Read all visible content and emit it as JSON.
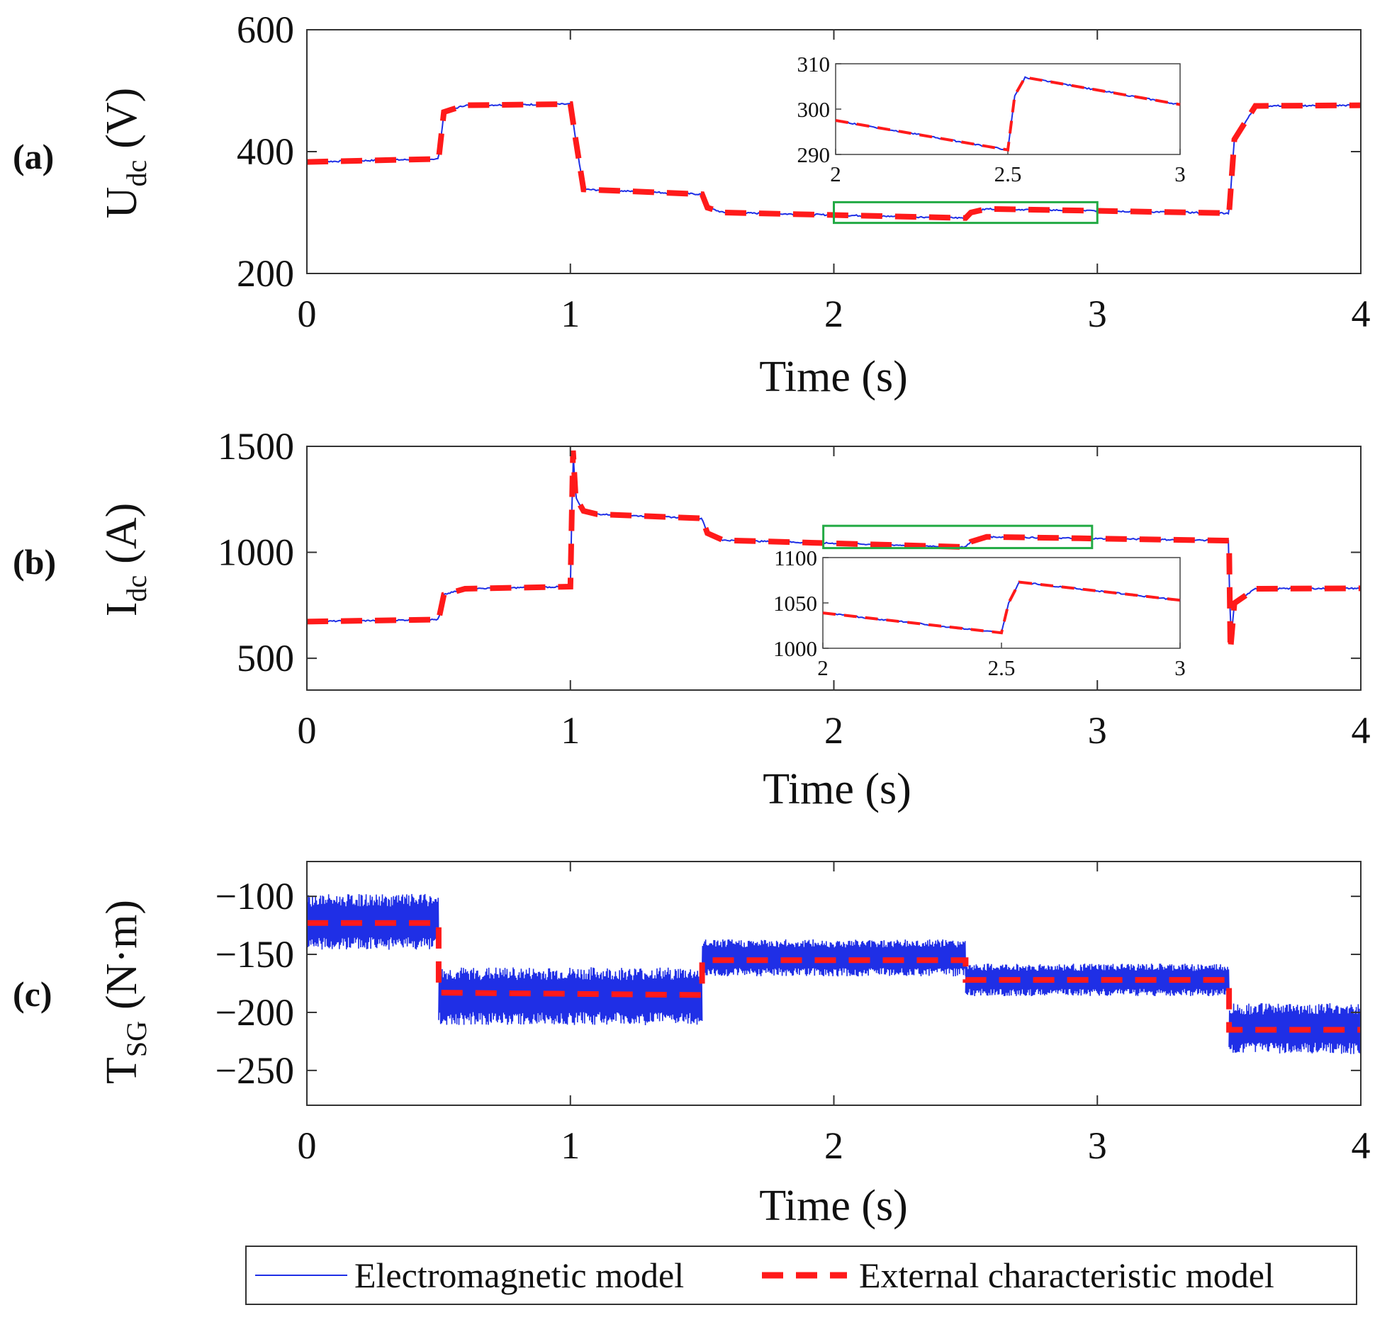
{
  "figure": {
    "xlabel": "Time (s)",
    "colors": {
      "electromagnetic": "#1f2fe6",
      "external": "#ff1a1a",
      "zoom_box": "#22aa44"
    }
  },
  "legend": {
    "items": [
      "Electromagnetic model",
      "External characteristic model"
    ]
  },
  "chart_data": [
    {
      "type": "line",
      "panel_label": "(a)",
      "ylabel_main": "U",
      "ylabel_sub": "dc",
      "ylabel_unit": "(V)",
      "xlabel": "Time (s)",
      "xlim": [
        0,
        4
      ],
      "ylim": [
        200,
        600
      ],
      "xticks": [
        0,
        1,
        2,
        3,
        4
      ],
      "yticks": [
        200,
        400,
        600
      ],
      "series": [
        {
          "name": "External characteristic model",
          "style": "dashed",
          "x": [
            0,
            0.5,
            0.52,
            0.6,
            1.0,
            1.02,
            1.05,
            1.5,
            1.52,
            1.58,
            2.5,
            2.52,
            2.58,
            3.5,
            3.52,
            3.6,
            4.0
          ],
          "y": [
            383,
            388,
            465,
            476,
            478,
            420,
            338,
            330,
            308,
            300,
            291,
            300,
            306,
            299,
            420,
            475,
            476
          ]
        }
      ],
      "zoom_box": {
        "x": [
          2,
          3
        ],
        "y": [
          283,
          317
        ]
      },
      "inset": {
        "xlim": [
          2,
          3
        ],
        "ylim": [
          290,
          310
        ],
        "xticks": [
          2,
          2.5,
          3
        ],
        "xticklabels": [
          "2",
          "2.5",
          "3"
        ],
        "yticks": [
          290,
          300,
          310
        ],
        "x": [
          2.0,
          2.5,
          2.52,
          2.55,
          3.0
        ],
        "y": [
          297.5,
          291,
          303,
          307,
          301
        ]
      }
    },
    {
      "type": "line",
      "panel_label": "(b)",
      "ylabel_main": "I",
      "ylabel_sub": "dc",
      "ylabel_unit": "(A)",
      "xlabel": "Time (s)",
      "xlim": [
        0,
        4
      ],
      "ylim": [
        350,
        1500
      ],
      "xticks": [
        0,
        1,
        2,
        3,
        4
      ],
      "yticks": [
        500,
        1000,
        1500
      ],
      "series": [
        {
          "name": "External characteristic model",
          "style": "dashed",
          "x": [
            0,
            0.5,
            0.52,
            0.6,
            1.0,
            1.01,
            1.02,
            1.05,
            1.1,
            1.5,
            1.52,
            1.58,
            2.5,
            2.52,
            2.58,
            3.5,
            3.505,
            3.52,
            3.6,
            4.0
          ],
          "y": [
            673,
            683,
            800,
            828,
            838,
            1480,
            1260,
            1195,
            1180,
            1160,
            1090,
            1057,
            1025,
            1050,
            1073,
            1055,
            540,
            760,
            828,
            830
          ]
        }
      ],
      "zoom_box": {
        "x": [
          1.96,
          2.98
        ],
        "y": [
          1020,
          1125
        ]
      },
      "inset": {
        "xlim": [
          2,
          3
        ],
        "ylim": [
          1000,
          1100
        ],
        "xticks": [
          2,
          2.5,
          3
        ],
        "xticklabels": [
          "2",
          "2.5",
          "3"
        ],
        "yticks": [
          1000,
          1050,
          1100
        ],
        "x": [
          2.0,
          2.5,
          2.52,
          2.55,
          3.0
        ],
        "y": [
          1039,
          1017,
          1050,
          1073,
          1053
        ]
      }
    },
    {
      "type": "line",
      "panel_label": "(c)",
      "ylabel_main": "T",
      "ylabel_sub": "SG",
      "ylabel_unit": "(N·m)",
      "xlabel": "Time (s)",
      "xlim": [
        0,
        4
      ],
      "ylim": [
        -280,
        -70
      ],
      "xticks": [
        0,
        1,
        2,
        3,
        4
      ],
      "yticks": [
        -100,
        -150,
        -200,
        -250
      ],
      "yticklabels": [
        "−100",
        "−150",
        "−200",
        "−250"
      ],
      "series": [
        {
          "name": "External characteristic model",
          "style": "dashed",
          "x": [
            0,
            0.5,
            0.5,
            1.5,
            1.5,
            2.5,
            2.5,
            3.5,
            3.5,
            4.0
          ],
          "y": [
            -123,
            -123,
            -183,
            -185,
            -155,
            -155,
            -172,
            -172,
            -215,
            -215
          ]
        },
        {
          "name": "Electromagnetic model",
          "style": "band",
          "segments": [
            {
              "x0": 0,
              "x1": 0.5,
              "center": -122,
              "amplitude": 24
            },
            {
              "x0": 0.5,
              "x1": 1.5,
              "center": -186,
              "amplitude": 25
            },
            {
              "x0": 1.5,
              "x1": 2.5,
              "center": -153,
              "amplitude": 16
            },
            {
              "x0": 2.5,
              "x1": 3.5,
              "center": -172,
              "amplitude": 14
            },
            {
              "x0": 3.5,
              "x1": 4.0,
              "center": -214,
              "amplitude": 22
            }
          ]
        }
      ]
    }
  ]
}
